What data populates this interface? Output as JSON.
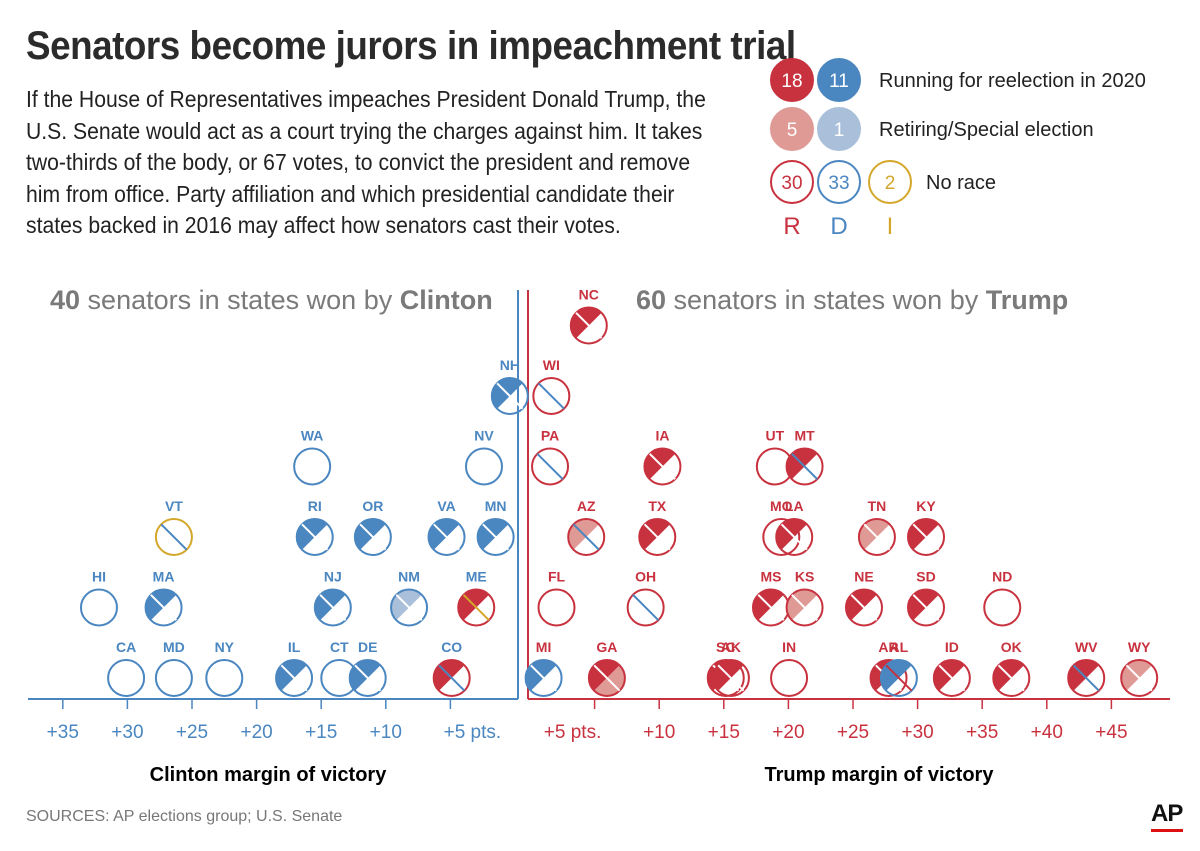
{
  "title": "Senators become jurors in impeachment trial",
  "intro": "If the House of Representatives impeaches President Donald Trump, the U.S. Senate would act as a court trying the charges against him. It takes two-thirds of the body, or 67 votes, to convict the president and remove him from office. Party affiliation and which presidential candidate their states backed in 2016 may affect how senators cast their votes.",
  "colors": {
    "rep": "#c8323f",
    "rep_light": "#e09a96",
    "dem": "#4a86c0",
    "dem_light": "#a9bfda",
    "ind": "#d4a72a",
    "text": "#2b2b2b",
    "gray": "#7a7a7a"
  },
  "legend": {
    "rows": [
      {
        "label": "Running for reelection in 2020",
        "counts": [
          "18",
          "11"
        ]
      },
      {
        "label": "Retiring/Special election",
        "counts": [
          "5",
          "1"
        ]
      },
      {
        "label": "No race",
        "counts": [
          "30",
          "33",
          "2"
        ]
      }
    ],
    "party_letters": [
      "R",
      "D",
      "I"
    ]
  },
  "headers": {
    "clinton_count": "40",
    "clinton_text": " senators in states won by ",
    "clinton_name": "Clinton",
    "trump_count": "60",
    "trump_text": " senators in states won by ",
    "trump_name": "Trump"
  },
  "source": "SOURCES: AP elections group; U.S. Senate",
  "logo": "AP",
  "chart_data": {
    "type": "scatter",
    "title": "Senators become jurors in impeachment trial",
    "encoding": "Each circle is a state (two senators). Fill shows seat status: running = dark fill, retiring/special = light fill, no race = outline. Diagonal split shows two senators of different status/party.",
    "left_axis": {
      "title": "Clinton margin of victory",
      "ticks": [
        "+35",
        "+30",
        "+25",
        "+20",
        "+15",
        "+10",
        "+5 pts."
      ],
      "tick_values": [
        35,
        30,
        25,
        20,
        15,
        10,
        5
      ]
    },
    "right_axis": {
      "title": "Trump margin of victory",
      "ticks": [
        "+5 pts.",
        "+10",
        "+15",
        "+20",
        "+25",
        "+30",
        "+35",
        "+40",
        "+45"
      ],
      "tick_values": [
        5,
        10,
        15,
        20,
        25,
        30,
        35,
        40,
        45
      ]
    },
    "clinton_states": [
      {
        "state": "CA",
        "margin": 30.1,
        "row": 0,
        "s1": "D0",
        "s2": "D0"
      },
      {
        "state": "MD",
        "margin": 26.4,
        "row": 0,
        "s1": "D0",
        "s2": "D0"
      },
      {
        "state": "NY",
        "margin": 22.5,
        "row": 0,
        "s1": "D0",
        "s2": "D0"
      },
      {
        "state": "IL",
        "margin": 17.1,
        "row": 0,
        "s1": "D2",
        "s2": "D0"
      },
      {
        "state": "CT",
        "margin": 13.6,
        "row": 0,
        "s1": "D0",
        "s2": "D0"
      },
      {
        "state": "DE",
        "margin": 11.4,
        "row": 0,
        "s1": "D2",
        "s2": "D0"
      },
      {
        "state": "CO",
        "margin": 4.9,
        "row": 0,
        "s1": "R2",
        "s2": "D0"
      },
      {
        "state": "HI",
        "margin": 32.2,
        "row": 1,
        "s1": "D0",
        "s2": "D0"
      },
      {
        "state": "MA",
        "margin": 27.2,
        "row": 1,
        "s1": "D2",
        "s2": "D0"
      },
      {
        "state": "NJ",
        "margin": 14.1,
        "row": 1,
        "s1": "D2",
        "s2": "D0"
      },
      {
        "state": "NM",
        "margin": 8.2,
        "row": 1,
        "s1": "D1",
        "s2": "D0"
      },
      {
        "state": "ME",
        "margin": 3.0,
        "row": 1,
        "s1": "R2",
        "s2": "I0"
      },
      {
        "state": "VT",
        "margin": 26.4,
        "row": 2,
        "s1": "I0",
        "s2": "D0"
      },
      {
        "state": "RI",
        "margin": 15.5,
        "row": 2,
        "s1": "D2",
        "s2": "D0"
      },
      {
        "state": "OR",
        "margin": 11.0,
        "row": 2,
        "s1": "D2",
        "s2": "D0"
      },
      {
        "state": "VA",
        "margin": 5.3,
        "row": 2,
        "s1": "D2",
        "s2": "D0"
      },
      {
        "state": "MN",
        "margin": 1.5,
        "row": 2,
        "s1": "D2",
        "s2": "D0"
      },
      {
        "state": "WA",
        "margin": 15.7,
        "row": 3,
        "s1": "D0",
        "s2": "D0"
      },
      {
        "state": "NV",
        "margin": 2.4,
        "row": 3,
        "s1": "D0",
        "s2": "D0"
      },
      {
        "state": "NH",
        "margin": 0.4,
        "row": 4,
        "s1": "D2",
        "s2": "D0"
      }
    ],
    "trump_states": [
      {
        "state": "MI",
        "margin": 0.2,
        "row": 0,
        "s1": "D2",
        "s2": "D0"
      },
      {
        "state": "GA",
        "margin": 5.1,
        "row": 0,
        "s1": "R2",
        "s2": "R1"
      },
      {
        "state": "SC",
        "margin": 14.3,
        "row": 0,
        "s1": "R2",
        "s2": "R0"
      },
      {
        "state": "AK",
        "margin": 14.7,
        "row": 0,
        "s1": "R2",
        "s2": "R0"
      },
      {
        "state": "IN",
        "margin": 19.2,
        "row": 0,
        "s1": "R0",
        "s2": "R0"
      },
      {
        "state": "AR",
        "margin": 26.9,
        "row": 0,
        "s1": "R2",
        "s2": "R0"
      },
      {
        "state": "AL",
        "margin": 27.7,
        "row": 0,
        "s1": "D2",
        "s2": "R0"
      },
      {
        "state": "ID",
        "margin": 31.8,
        "row": 0,
        "s1": "R2",
        "s2": "R0"
      },
      {
        "state": "OK",
        "margin": 36.4,
        "row": 0,
        "s1": "R2",
        "s2": "R0"
      },
      {
        "state": "WV",
        "margin": 42.2,
        "row": 0,
        "s1": "R2",
        "s2": "D0"
      },
      {
        "state": "WY",
        "margin": 46.3,
        "row": 0,
        "s1": "R1",
        "s2": "R0"
      },
      {
        "state": "FL",
        "margin": 1.2,
        "row": 1,
        "s1": "R0",
        "s2": "R0"
      },
      {
        "state": "OH",
        "margin": 8.1,
        "row": 1,
        "s1": "R0",
        "s2": "D0"
      },
      {
        "state": "MS",
        "margin": 17.8,
        "row": 1,
        "s1": "R2",
        "s2": "R0"
      },
      {
        "state": "KS",
        "margin": 20.4,
        "row": 1,
        "s1": "R1",
        "s2": "R0"
      },
      {
        "state": "NE",
        "margin": 25.0,
        "row": 1,
        "s1": "R2",
        "s2": "R0"
      },
      {
        "state": "SD",
        "margin": 29.8,
        "row": 1,
        "s1": "R2",
        "s2": "R0"
      },
      {
        "state": "ND",
        "margin": 35.7,
        "row": 1,
        "s1": "R0",
        "s2": "R0"
      },
      {
        "state": "AZ",
        "margin": 3.5,
        "row": 2,
        "s1": "R1",
        "s2": "D0"
      },
      {
        "state": "TX",
        "margin": 9.0,
        "row": 2,
        "s1": "R2",
        "s2": "R0"
      },
      {
        "state": "MO",
        "margin": 18.6,
        "row": 2,
        "s1": "R0",
        "s2": "R0"
      },
      {
        "state": "LA",
        "margin": 19.6,
        "row": 2,
        "s1": "R2",
        "s2": "R0"
      },
      {
        "state": "TN",
        "margin": 26.0,
        "row": 2,
        "s1": "R1",
        "s2": "R0"
      },
      {
        "state": "KY",
        "margin": 29.8,
        "row": 2,
        "s1": "R2",
        "s2": "R0"
      },
      {
        "state": "PA",
        "margin": 0.7,
        "row": 3,
        "s1": "R0",
        "s2": "D0"
      },
      {
        "state": "IA",
        "margin": 9.4,
        "row": 3,
        "s1": "R2",
        "s2": "R0"
      },
      {
        "state": "UT",
        "margin": 18.1,
        "row": 3,
        "s1": "R0",
        "s2": "R0"
      },
      {
        "state": "MT",
        "margin": 20.4,
        "row": 3,
        "s1": "R2",
        "s2": "D0"
      },
      {
        "state": "WI",
        "margin": 0.8,
        "row": 4,
        "s1": "R0",
        "s2": "D0"
      },
      {
        "state": "NC",
        "margin": 3.7,
        "row": 5,
        "s1": "R2",
        "s2": "R0"
      }
    ]
  }
}
